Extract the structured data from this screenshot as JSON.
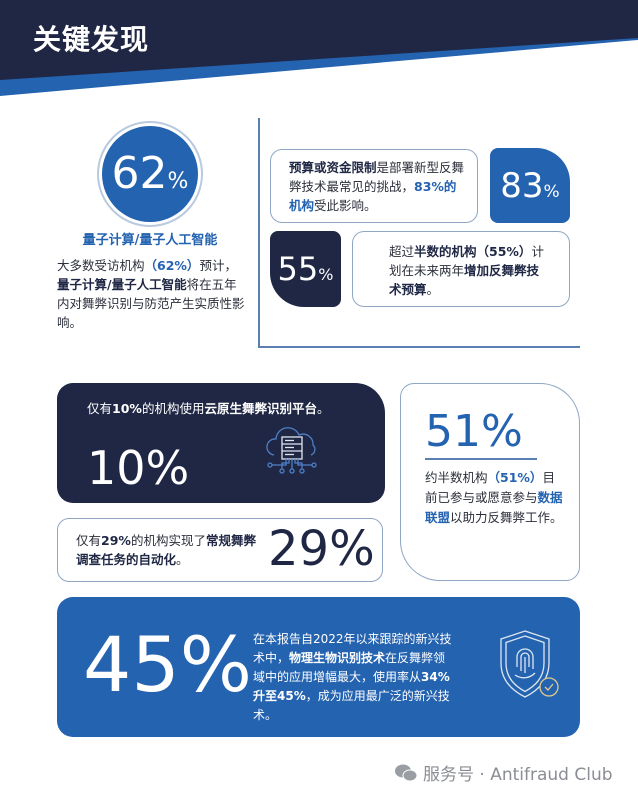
{
  "header": {
    "title": "关键发现"
  },
  "colors": {
    "navy": "#1f2744",
    "blue": "#2463b0",
    "border": "#8fa6c4"
  },
  "stat62": {
    "value": "62",
    "unit": "%",
    "subtitle": "量子计算/量子人工智能",
    "text": [
      "大多数受访机构",
      "（62%）",
      "预计，",
      "量子计算/量子人工智能",
      "将在五年内对舞弊识别与防范产生实质性影响。"
    ]
  },
  "stat83": {
    "value": "83",
    "unit": "%",
    "text": [
      "预算或资金限制",
      "是部署新型反舞弊技术最常见的挑战，",
      "83%的机构",
      "受此影响。"
    ]
  },
  "stat55": {
    "value": "55",
    "unit": "%",
    "text": [
      "超过",
      "半数的机构（55%）",
      "计划在未来两年",
      "增加反舞弊技术预算",
      "。"
    ]
  },
  "stat10": {
    "value": "10%",
    "icon": "cloud-server-icon",
    "text": [
      "仅有",
      "10%",
      "的机构使用",
      "云原生舞弊识别平台",
      "。"
    ]
  },
  "stat29": {
    "value": "29%",
    "text": [
      "仅有",
      "29%",
      "的机构实现了",
      "常规舞弊调查任务的自动化",
      "。"
    ]
  },
  "stat51": {
    "value": "51%",
    "text": [
      "约半数机构",
      "（51%）",
      "目前已参与或愿意参与",
      "数据联盟",
      "以助力反舞弊工作。"
    ]
  },
  "stat45": {
    "value": "45%",
    "icon": "fingerprint-shield-icon",
    "text": [
      "在本报告自2022年以来跟踪的新兴技术中，",
      "物理生物识别技术",
      "在反舞弊领域中的应用增幅最大，使用率从",
      "34%升至45%",
      "，成为应用最广泛的新兴技术。"
    ]
  },
  "watermark": {
    "icon": "wechat-icon",
    "text": "服务号 · Antifraud Club"
  }
}
